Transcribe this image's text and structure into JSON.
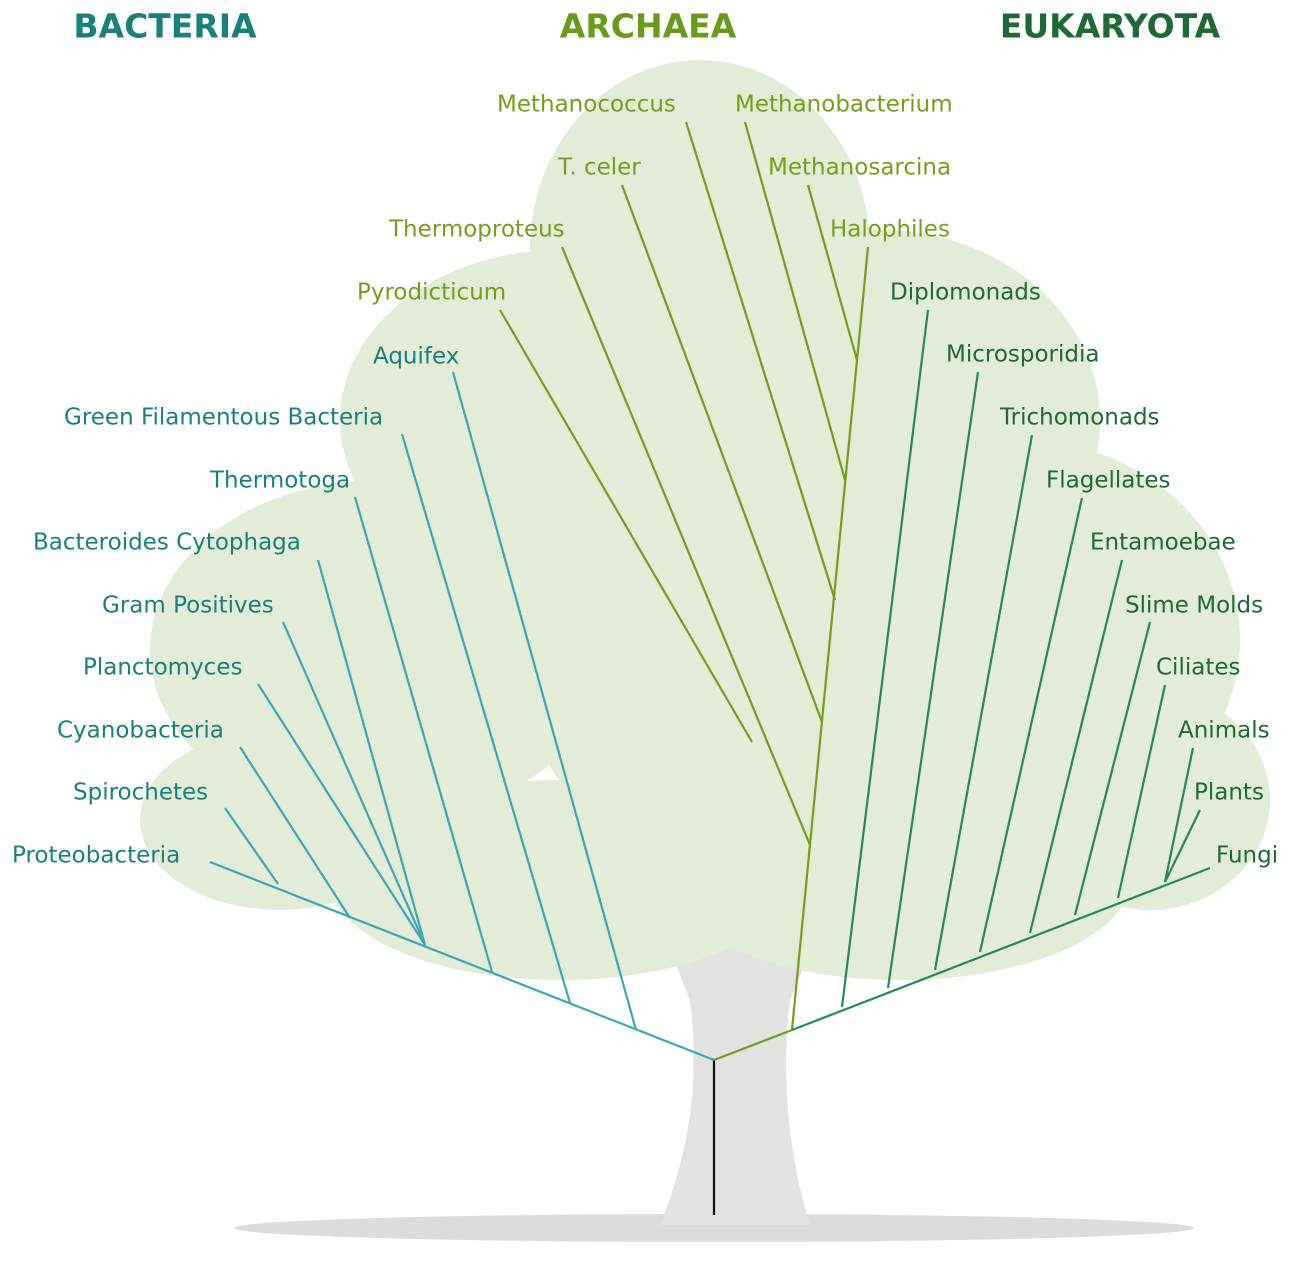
{
  "domains": [
    {
      "title": "BACTERIA",
      "leaves": [
        "Aquifex",
        "Green Filamentous Bacteria",
        "Thermotoga",
        "Bacteroides Cytophaga",
        "Gram Positives",
        "Planctomyces",
        "Cyanobacteria",
        "Spirochetes",
        "Proteobacteria"
      ]
    },
    {
      "title": "ARCHAEA",
      "leaves": [
        "Methanococcus",
        "Methanobacterium",
        "T. celer",
        "Methanosarcina",
        "Thermoproteus",
        "Halophiles",
        "Pyrodicticum"
      ]
    },
    {
      "title": "EUKARYOTA",
      "leaves": [
        "Diplomonads",
        "Microsporidia",
        "Trichomonads",
        "Flagellates",
        "Entamoebae",
        "Slime Molds",
        "Ciliates",
        "Animals",
        "Plants",
        "Fungi"
      ]
    }
  ]
}
